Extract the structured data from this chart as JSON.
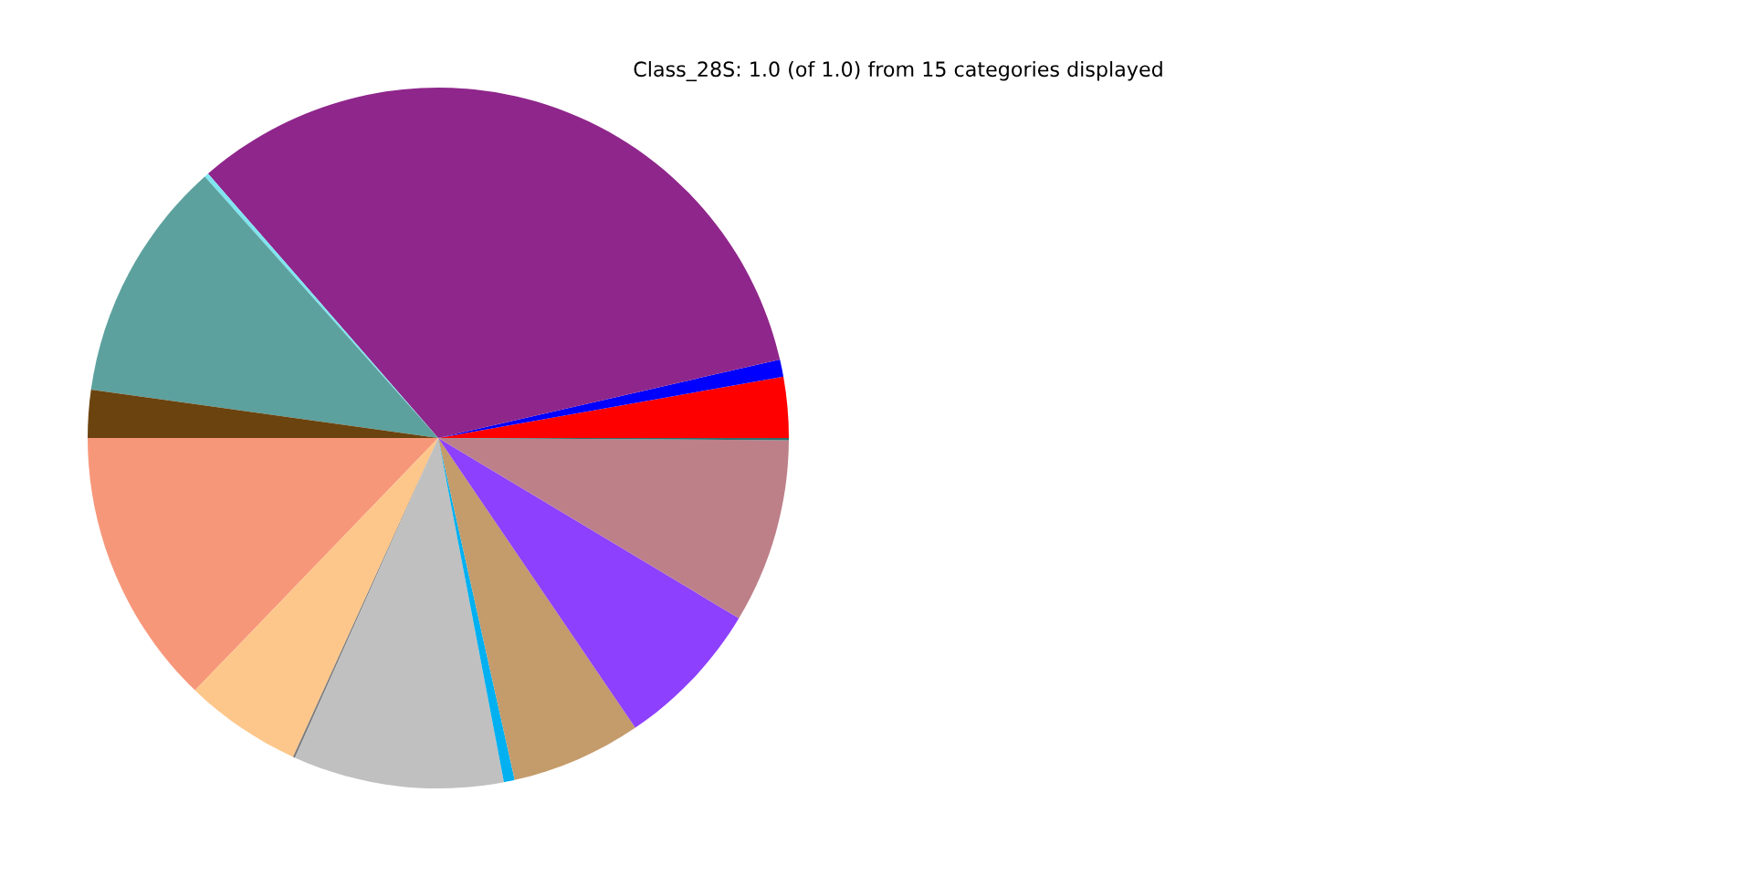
{
  "chart_data": {
    "type": "pie",
    "title": "Class_28S: 1.0 (of 1.0) from 15 categories displayed",
    "categories": [
      null,
      null,
      null,
      null,
      null,
      null,
      null,
      null,
      null,
      null,
      null,
      null,
      null,
      null,
      null
    ],
    "values": [
      2.8,
      0.8,
      32.8,
      0.2,
      11.2,
      2.2,
      12.8,
      5.4,
      0.1,
      9.7,
      0.5,
      6.0,
      6.9,
      8.5,
      0.1
    ],
    "colors": [
      "#ff0000",
      "#0000ff",
      "#8f268b",
      "#7fe5f0",
      "#5ca19e",
      "#6b430f",
      "#f7977a",
      "#fdc78b",
      "#7f7f7f",
      "#c0c0c0",
      "#00b0f0",
      "#c49b6a",
      "#8e40ff",
      "#bd8089",
      "#307070"
    ]
  }
}
